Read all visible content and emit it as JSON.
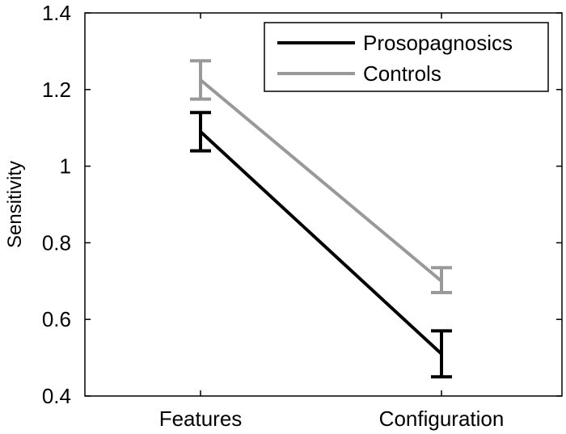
{
  "chart_data": {
    "type": "line",
    "categories": [
      "Features",
      "Configuration"
    ],
    "ylabel": "Sensitivity",
    "xlabel": "",
    "ylim": [
      0.4,
      1.4
    ],
    "yticks": [
      "0.4",
      "0.6",
      "0.8",
      "1",
      "1.2",
      "1.4"
    ],
    "yticks_values": [
      0.4,
      0.6,
      0.8,
      1.0,
      1.2,
      1.4
    ],
    "grid": false,
    "legend": "top-right",
    "series": [
      {
        "name": "Prosopagnosics",
        "color": "#000000",
        "values": [
          1.09,
          0.51
        ],
        "error_low": [
          1.04,
          0.45
        ],
        "error_high": [
          1.14,
          0.57
        ]
      },
      {
        "name": "Controls",
        "color": "#999999",
        "values": [
          1.225,
          0.7
        ],
        "error_low": [
          1.175,
          0.67
        ],
        "error_high": [
          1.275,
          0.735
        ]
      }
    ]
  }
}
